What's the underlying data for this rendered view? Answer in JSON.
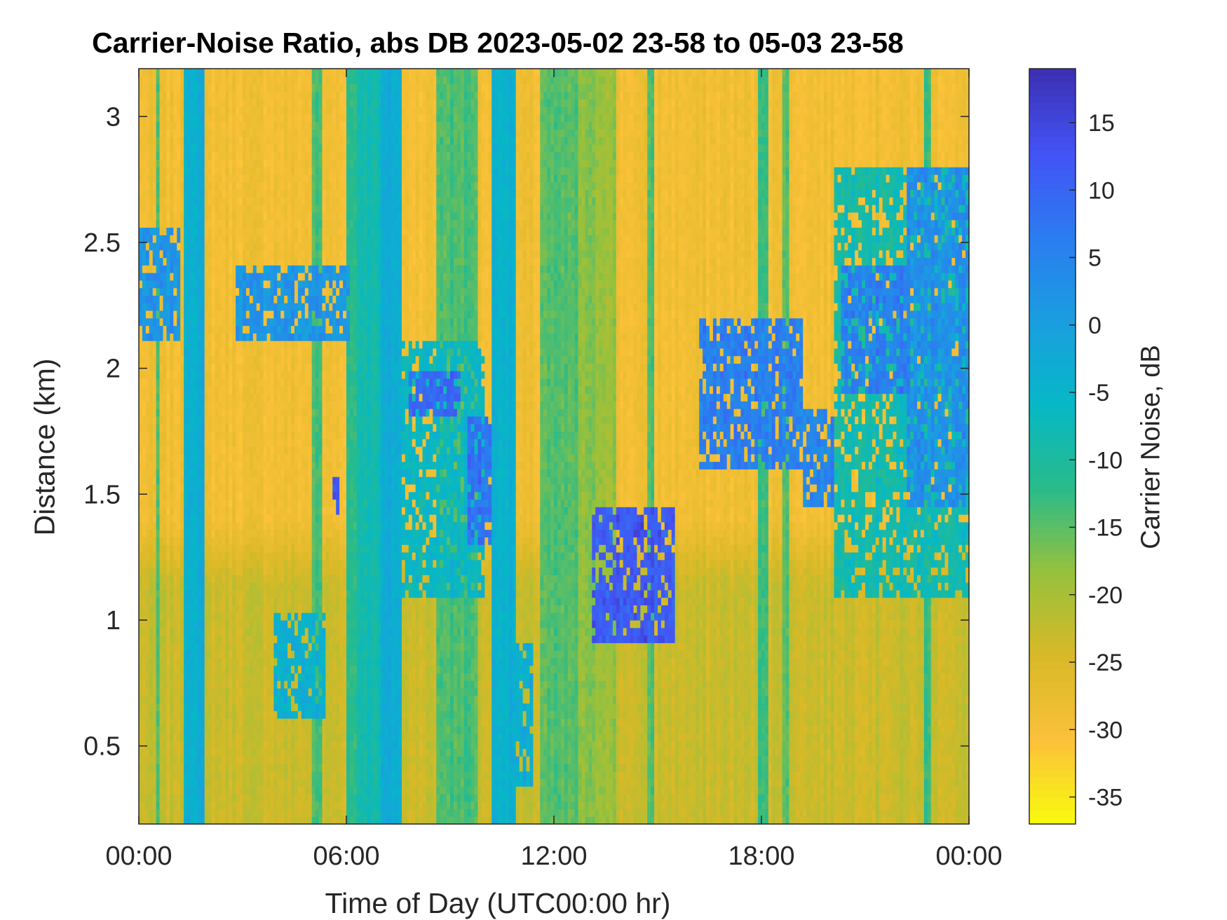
{
  "chart_data": {
    "type": "heatmap",
    "title": "Carrier-Noise Ratio, abs DB 2023-05-02 23-58 to 05-03 23-58",
    "xlabel": "Time of Day (UTC00:00 hr)",
    "ylabel": "Distance (km)",
    "x_unit": "hours",
    "xlim": [
      0,
      24
    ],
    "ylim": [
      0.19,
      3.19
    ],
    "x_ticks": [
      0,
      6,
      12,
      18,
      24
    ],
    "x_tick_labels": [
      "00:00",
      "06:00",
      "12:00",
      "18:00",
      "00:00"
    ],
    "y_ticks": [
      0.5,
      1,
      1.5,
      2,
      2.5,
      3
    ],
    "y_tick_labels": [
      "0.5",
      "1",
      "1.5",
      "2",
      "2.5",
      "3"
    ],
    "grid": false,
    "colorbar": {
      "label": "Carrier Noise, dB",
      "range": [
        -37,
        19
      ],
      "ticks": [
        15,
        10,
        5,
        0,
        -5,
        -10,
        -15,
        -20,
        -25,
        -30,
        -35
      ],
      "tick_labels": [
        "15",
        "10",
        "5",
        "0",
        "-5",
        "-10",
        "-15",
        "-20",
        "-25",
        "-30",
        "-35"
      ],
      "colormap": "parula (reversed: yellow = low, dark blue = high)",
      "colors": [
        "#f9fb0e",
        "#fbc13a",
        "#d9b927",
        "#97c13c",
        "#29bb8a",
        "#06b8c6",
        "#1a9ee0",
        "#2b7cf0",
        "#4353f5",
        "#3b2fb2"
      ]
    },
    "background_dB": -29,
    "lower_layer": {
      "top_km": 1.4,
      "value_dB": -23
    },
    "vertical_bands": [
      {
        "x": [
          1.35,
          1.85
        ],
        "value_dB": -3
      },
      {
        "x": [
          0.5,
          0.62
        ],
        "value_dB": -14
      },
      {
        "x": [
          5.0,
          5.35
        ],
        "value_dB": -14
      },
      {
        "x": [
          6.0,
          6.25
        ],
        "value_dB": -12
      },
      {
        "x": [
          6.3,
          7.4
        ],
        "value_dB": -8
      },
      {
        "x": [
          7.0,
          7.6
        ],
        "value_dB": -3
      },
      {
        "x": [
          8.6,
          9.8
        ],
        "value_dB": -14
      },
      {
        "x": [
          10.2,
          10.9
        ],
        "value_dB": -4
      },
      {
        "x": [
          11.6,
          12.7
        ],
        "value_dB": -15
      },
      {
        "x": [
          12.7,
          13.8
        ],
        "value_dB": -18
      },
      {
        "x": [
          14.7,
          14.9
        ],
        "value_dB": -14
      },
      {
        "x": [
          17.9,
          18.2
        ],
        "value_dB": -12
      },
      {
        "x": [
          18.6,
          18.8
        ],
        "value_dB": -14
      },
      {
        "x": [
          22.7,
          22.9
        ],
        "value_dB": -12
      }
    ],
    "features": [
      {
        "x": [
          0.0,
          1.2
        ],
        "y": [
          2.1,
          2.55
        ],
        "value_dB": 2
      },
      {
        "x": [
          2.8,
          6.1
        ],
        "y": [
          2.1,
          2.4
        ],
        "value_dB": 2
      },
      {
        "x": [
          5.6,
          5.85
        ],
        "y": [
          1.42,
          1.58
        ],
        "value_dB": 12
      },
      {
        "x": [
          3.9,
          5.4
        ],
        "y": [
          0.6,
          1.03
        ],
        "value_dB": -4
      },
      {
        "x": [
          7.6,
          10.0
        ],
        "y": [
          1.1,
          2.1
        ],
        "value_dB": -6
      },
      {
        "x": [
          7.8,
          9.3
        ],
        "y": [
          1.8,
          2.0
        ],
        "value_dB": 10
      },
      {
        "x": [
          9.5,
          10.2
        ],
        "y": [
          1.3,
          1.8
        ],
        "value_dB": 8
      },
      {
        "x": [
          10.7,
          11.4
        ],
        "y": [
          0.35,
          0.9
        ],
        "value_dB": -4
      },
      {
        "x": [
          13.1,
          15.5
        ],
        "y": [
          0.9,
          1.45
        ],
        "value_dB": 12
      },
      {
        "x": [
          16.2,
          19.2
        ],
        "y": [
          1.6,
          2.2
        ],
        "value_dB": 6
      },
      {
        "x": [
          19.2,
          20.1
        ],
        "y": [
          1.45,
          1.85
        ],
        "value_dB": 5
      },
      {
        "x": [
          20.1,
          24.0
        ],
        "y": [
          1.1,
          2.8
        ],
        "value_dB": -8
      },
      {
        "x": [
          20.3,
          22.3
        ],
        "y": [
          1.9,
          2.4
        ],
        "value_dB": 6
      },
      {
        "x": [
          22.2,
          24.0
        ],
        "y": [
          1.45,
          2.8
        ],
        "value_dB": 3
      }
    ]
  }
}
